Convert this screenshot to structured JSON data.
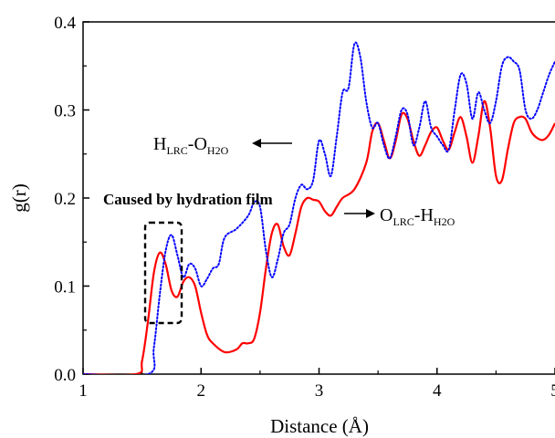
{
  "chart_data": {
    "type": "line",
    "title": "",
    "xlabel": "Distance (Å)",
    "ylabel": "g(r)",
    "xlim": [
      1,
      5
    ],
    "ylim": [
      0,
      0.4
    ],
    "xticks": [
      1,
      2,
      3,
      4,
      5
    ],
    "yticks": [
      0.0,
      0.1,
      0.2,
      0.3,
      0.4
    ],
    "xtick_labels": [
      "1",
      "2",
      "3",
      "4",
      "5"
    ],
    "ytick_labels": [
      "0.0",
      "0.1",
      "0.2",
      "0.3",
      "0.4"
    ],
    "grid": false,
    "series": [
      {
        "name_main": "O",
        "name_sub1": "LRC",
        "name_dash": "-H",
        "name_sub2": "H2O",
        "color": "#ff0000",
        "style": "solid",
        "x": [
          1.0,
          1.45,
          1.5,
          1.55,
          1.6,
          1.65,
          1.7,
          1.75,
          1.8,
          1.85,
          1.9,
          1.95,
          2.0,
          2.05,
          2.1,
          2.2,
          2.3,
          2.35,
          2.4,
          2.45,
          2.5,
          2.55,
          2.6,
          2.65,
          2.7,
          2.75,
          2.8,
          2.85,
          2.9,
          2.95,
          3.0,
          3.05,
          3.1,
          3.15,
          3.2,
          3.3,
          3.4,
          3.45,
          3.5,
          3.55,
          3.6,
          3.65,
          3.7,
          3.75,
          3.8,
          3.85,
          3.9,
          3.95,
          4.0,
          4.05,
          4.1,
          4.15,
          4.2,
          4.25,
          4.3,
          4.35,
          4.4,
          4.45,
          4.5,
          4.55,
          4.6,
          4.65,
          4.7,
          4.75,
          4.8,
          4.85,
          4.9,
          4.95,
          5.0
        ],
        "y": [
          0.0,
          0.0,
          0.015,
          0.06,
          0.115,
          0.138,
          0.125,
          0.095,
          0.088,
          0.105,
          0.11,
          0.1,
          0.07,
          0.045,
          0.035,
          0.025,
          0.028,
          0.035,
          0.035,
          0.04,
          0.07,
          0.12,
          0.16,
          0.17,
          0.145,
          0.135,
          0.16,
          0.19,
          0.2,
          0.198,
          0.196,
          0.185,
          0.18,
          0.19,
          0.2,
          0.21,
          0.24,
          0.275,
          0.285,
          0.265,
          0.245,
          0.265,
          0.295,
          0.29,
          0.265,
          0.248,
          0.26,
          0.275,
          0.28,
          0.265,
          0.255,
          0.275,
          0.292,
          0.27,
          0.24,
          0.27,
          0.31,
          0.28,
          0.225,
          0.22,
          0.255,
          0.285,
          0.292,
          0.29,
          0.275,
          0.268,
          0.266,
          0.272,
          0.285
        ]
      },
      {
        "name_main": "H",
        "name_sub1": "LRC",
        "name_dash": "-O",
        "name_sub2": "H2O",
        "color": "#0000ff",
        "style": "dotted",
        "x": [
          1.0,
          1.55,
          1.6,
          1.65,
          1.7,
          1.75,
          1.8,
          1.85,
          1.9,
          1.95,
          2.0,
          2.05,
          2.1,
          2.15,
          2.2,
          2.3,
          2.4,
          2.45,
          2.5,
          2.55,
          2.6,
          2.65,
          2.7,
          2.75,
          2.8,
          2.85,
          2.9,
          2.95,
          3.0,
          3.05,
          3.1,
          3.15,
          3.2,
          3.25,
          3.3,
          3.35,
          3.4,
          3.45,
          3.5,
          3.55,
          3.6,
          3.65,
          3.7,
          3.75,
          3.8,
          3.85,
          3.9,
          3.95,
          4.0,
          4.05,
          4.1,
          4.15,
          4.2,
          4.25,
          4.3,
          4.35,
          4.4,
          4.45,
          4.5,
          4.55,
          4.6,
          4.65,
          4.7,
          4.75,
          4.8,
          4.85,
          4.9,
          4.95,
          5.0
        ],
        "y": [
          0.0,
          0.0,
          0.03,
          0.09,
          0.14,
          0.158,
          0.135,
          0.11,
          0.125,
          0.12,
          0.1,
          0.108,
          0.12,
          0.125,
          0.155,
          0.165,
          0.18,
          0.195,
          0.19,
          0.14,
          0.11,
          0.13,
          0.16,
          0.17,
          0.2,
          0.215,
          0.21,
          0.22,
          0.265,
          0.25,
          0.225,
          0.27,
          0.32,
          0.325,
          0.375,
          0.36,
          0.31,
          0.28,
          0.285,
          0.26,
          0.245,
          0.27,
          0.3,
          0.295,
          0.26,
          0.28,
          0.31,
          0.28,
          0.27,
          0.26,
          0.255,
          0.3,
          0.34,
          0.33,
          0.29,
          0.32,
          0.3,
          0.285,
          0.31,
          0.35,
          0.36,
          0.355,
          0.345,
          0.3,
          0.29,
          0.3,
          0.32,
          0.34,
          0.355
        ]
      }
    ],
    "annotations": {
      "caused_by": "Caused by hydration film"
    }
  }
}
